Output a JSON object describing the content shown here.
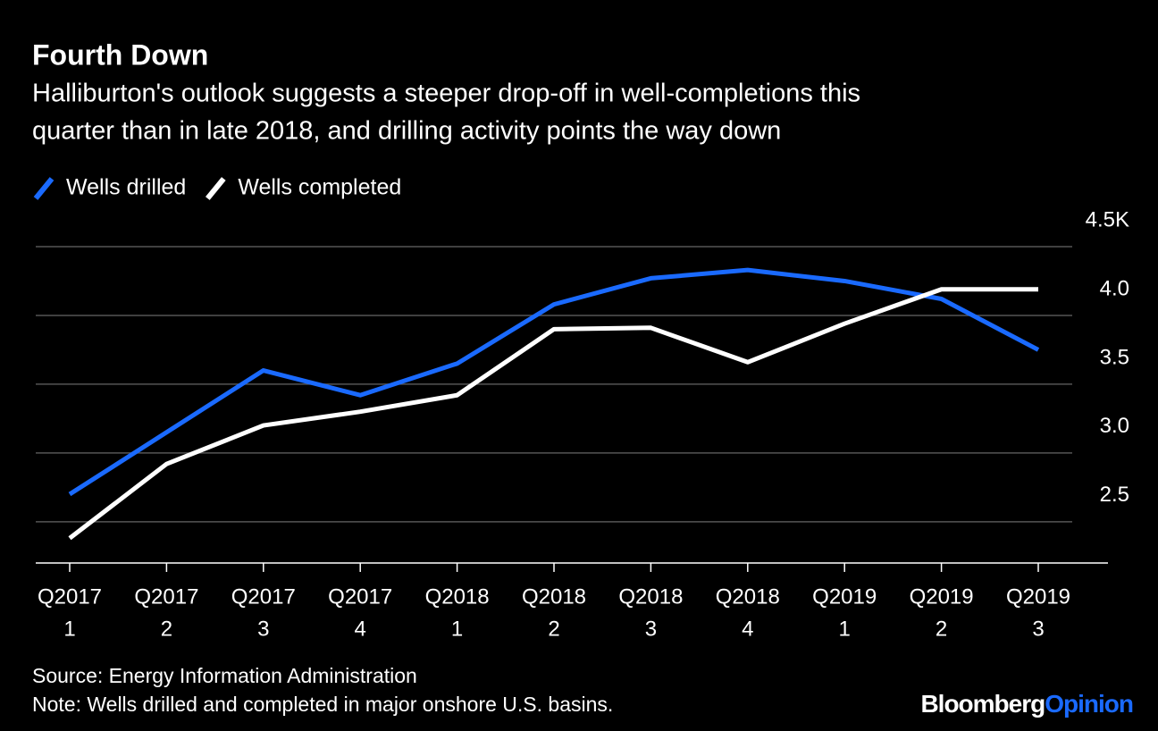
{
  "chart_data": {
    "type": "line",
    "title": "Fourth Down",
    "subtitle": [
      "Halliburton's outlook suggests a steeper drop-off in well-completions this",
      "quarter than in late 2018, and drilling activity points the way down"
    ],
    "categories": [
      [
        "Q2017",
        "1"
      ],
      [
        "Q2017",
        "2"
      ],
      [
        "Q2017",
        "3"
      ],
      [
        "Q2017",
        "4"
      ],
      [
        "Q2018",
        "1"
      ],
      [
        "Q2018",
        "2"
      ],
      [
        "Q2018",
        "3"
      ],
      [
        "Q2018",
        "4"
      ],
      [
        "Q2019",
        "1"
      ],
      [
        "Q2019",
        "2"
      ],
      [
        "Q2019",
        "3"
      ]
    ],
    "series": [
      {
        "name": "Wells drilled",
        "color": "#1a6aff",
        "values": [
          2.7,
          3.15,
          3.6,
          3.42,
          3.65,
          4.08,
          4.27,
          4.33,
          4.25,
          4.12,
          3.75
        ]
      },
      {
        "name": "Wells completed",
        "color": "#ffffff",
        "values": [
          2.38,
          2.92,
          3.2,
          3.3,
          3.42,
          3.9,
          3.91,
          3.66,
          3.94,
          4.19,
          4.19
        ]
      }
    ],
    "ylim": [
      2.2,
      4.5
    ],
    "yticks": [
      2.5,
      {
        "value": 3,
        "label": "3.0"
      },
      3.5,
      {
        "value": 4,
        "label": "4.0"
      },
      {
        "value": 4.5,
        "label": "4.5K"
      }
    ],
    "grid": true,
    "source": "Source: Energy Information Administration",
    "note": "Note: Wells drilled and completed in major onshore U.S. basins.",
    "branding": [
      "Bloomberg",
      "Opinion"
    ]
  }
}
